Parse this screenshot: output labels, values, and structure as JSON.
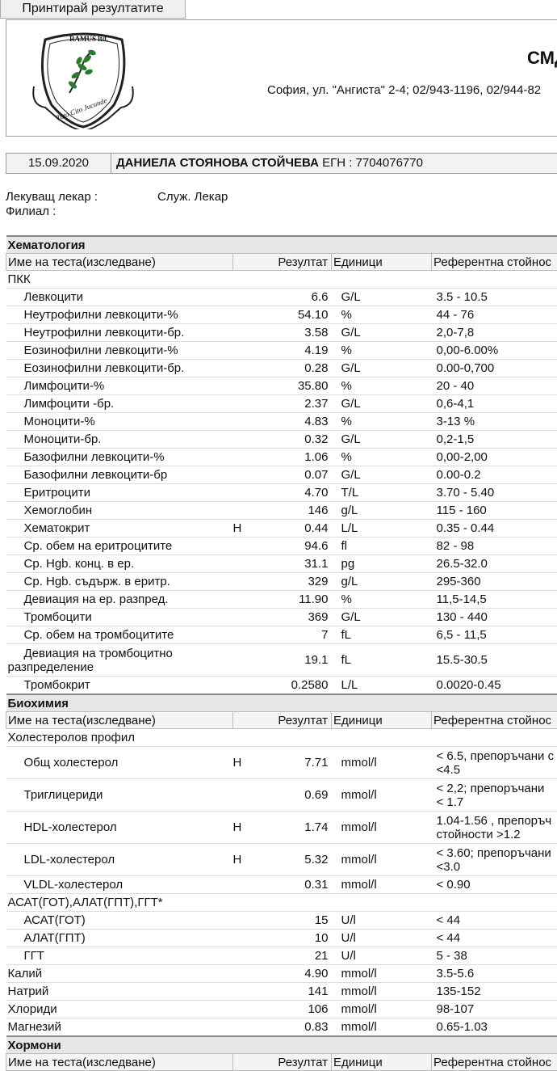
{
  "print_button": "Принтирай резултатите",
  "header": {
    "logo_text_top": "RAMUS ltd.",
    "logo_text_bottom": "Tuto Cito Jucunde",
    "company": "СМД",
    "address": "София, ул. \"Ангиста\" 2-4; 02/943-1196, 02/944-82"
  },
  "patient": {
    "date": "15.09.2020",
    "name": "ДАНИЕЛА СТОЯНОВА СТОЙЧЕВА",
    "egn": "ЕГН : 7704076770"
  },
  "doctor": {
    "label": "Лекуващ лекар :",
    "value": "Служ. Лекар"
  },
  "branch": {
    "label": "Филиал :"
  },
  "columns": {
    "name": "Име на теста(изследване)",
    "result": "Резултат",
    "units": "Единици",
    "ref": "Референтна стойнос"
  },
  "hematology": {
    "title": "Хематология",
    "group": "ПКК",
    "rows": [
      {
        "name": "Левкоцити",
        "flag": "",
        "result": "6.6",
        "unit": "G/L",
        "ref": "3.5 - 10.5"
      },
      {
        "name": "Неутрофилни левкоцити-%",
        "flag": "",
        "result": "54.10",
        "unit": "%",
        "ref": "44 - 76"
      },
      {
        "name": "Неутрофилни левкоцити-бр.",
        "flag": "",
        "result": "3.58",
        "unit": "G/L",
        "ref": "2,0-7,8"
      },
      {
        "name": "Еозинофилни левкоцити-%",
        "flag": "",
        "result": "4.19",
        "unit": "%",
        "ref": "0,00-6.00%"
      },
      {
        "name": "Еозинофилни левкоцити-бр.",
        "flag": "",
        "result": "0.28",
        "unit": "G/L",
        "ref": "0.00-0,700"
      },
      {
        "name": "Лимфоцити-%",
        "flag": "",
        "result": "35.80",
        "unit": "%",
        "ref": "20 - 40"
      },
      {
        "name": "Лимфоцити -бр.",
        "flag": "",
        "result": "2.37",
        "unit": "G/L",
        "ref": "0,6-4,1"
      },
      {
        "name": "Моноцити-%",
        "flag": "",
        "result": "4.83",
        "unit": "%",
        "ref": "3-13 %"
      },
      {
        "name": "Моноцити-бр.",
        "flag": "",
        "result": "0.32",
        "unit": "G/L",
        "ref": "0,2-1,5"
      },
      {
        "name": "Базофилни левкоцити-%",
        "flag": "",
        "result": "1.06",
        "unit": "%",
        "ref": "0,00-2,00"
      },
      {
        "name": "Базофилни левкоцити-бр",
        "flag": "",
        "result": "0.07",
        "unit": "G/L",
        "ref": "0.00-0.2"
      },
      {
        "name": "Еритроцити",
        "flag": "",
        "result": "4.70",
        "unit": "T/L",
        "ref": "3.70 - 5.40"
      },
      {
        "name": "Хемоглобин",
        "flag": "",
        "result": "146",
        "unit": "g/L",
        "ref": "115 - 160"
      },
      {
        "name": "Хематокрит",
        "flag": "H",
        "result": "0.44",
        "unit": "L/L",
        "ref": "0.35 - 0.44"
      },
      {
        "name": "Ср. обем на еритроцитите",
        "flag": "",
        "result": "94.6",
        "unit": "fl",
        "ref": "82 - 98"
      },
      {
        "name": "Ср. Hgb. конц. в ер.",
        "flag": "",
        "result": "31.1",
        "unit": "pg",
        "ref": "26.5-32.0"
      },
      {
        "name": "Ср. Hgb. съдърж. в еритр.",
        "flag": "",
        "result": "329",
        "unit": "g/L",
        "ref": "295-360"
      },
      {
        "name": "Девиация на ер. разпред.",
        "flag": "",
        "result": "11.90",
        "unit": "%",
        "ref": "11,5-14,5"
      },
      {
        "name": "Тромбоцити",
        "flag": "",
        "result": "369",
        "unit": "G/L",
        "ref": "130 - 440"
      },
      {
        "name": "Ср. обем на тромбоцитите",
        "flag": "",
        "result": "7",
        "unit": "fL",
        "ref": "6,5 - 11,5"
      }
    ],
    "tall_row": {
      "name_line1": "Девиация на тромбоцитно",
      "name_line2": "разпределение",
      "flag": "",
      "result": "19.1",
      "unit": "fL",
      "ref": "15.5-30.5"
    },
    "last_row": {
      "name": "Тромбокрит",
      "flag": "",
      "result": "0.2580",
      "unit": "L/L",
      "ref": "0.0020-0.45"
    }
  },
  "biochemistry": {
    "title": "Биохимия",
    "lipid_group": "Холестеролов профил",
    "lipids": [
      {
        "name": "Общ холестерол",
        "flag": "H",
        "result": "7.71",
        "unit": "mmol/l",
        "ref1": "< 6.5, препоръчани с",
        "ref2": "<4.5"
      },
      {
        "name": "Триглицериди",
        "flag": "",
        "result": "0.69",
        "unit": "mmol/l",
        "ref1": "< 2,2; препоръчани",
        "ref2": "< 1.7"
      },
      {
        "name": "HDL-холестерол",
        "flag": "H",
        "result": "1.74",
        "unit": "mmol/l",
        "ref1": "1.04-1.56 , препоръч",
        "ref2": "стойности >1.2"
      },
      {
        "name": "LDL-холестерол",
        "flag": "H",
        "result": "5.32",
        "unit": "mmol/l",
        "ref1": "< 3.60; препоръчани",
        "ref2": "<3.0"
      }
    ],
    "vldl": {
      "name": "VLDL-холестерол",
      "flag": "",
      "result": "0.31",
      "unit": "mmol/l",
      "ref": "< 0.90"
    },
    "liver_group": "АСАТ(ГОТ),АЛАТ(ГПТ),ГГТ*",
    "liver": [
      {
        "name": "АСАТ(ГОТ)",
        "flag": "",
        "result": "15",
        "unit": "U/l",
        "ref": "< 44"
      },
      {
        "name": "АЛАТ(ГПТ)",
        "flag": "",
        "result": "10",
        "unit": "U/l",
        "ref": "< 44"
      },
      {
        "name": "ГГТ",
        "flag": "",
        "result": "21",
        "unit": "U/l",
        "ref": "5 - 38"
      }
    ],
    "electrolytes": [
      {
        "name": "Калий",
        "flag": "",
        "result": "4.90",
        "unit": "mmol/l",
        "ref": "3.5-5.6"
      },
      {
        "name": "Натрий",
        "flag": "",
        "result": "141",
        "unit": "mmol/l",
        "ref": "135-152"
      },
      {
        "name": "Хлориди",
        "flag": "",
        "result": "106",
        "unit": "mmol/l",
        "ref": "98-107"
      },
      {
        "name": "Магнезий",
        "flag": "",
        "result": "0.83",
        "unit": "mmol/l",
        "ref": "0.65-1.03"
      }
    ]
  },
  "hormones": {
    "title": "Хормони"
  }
}
